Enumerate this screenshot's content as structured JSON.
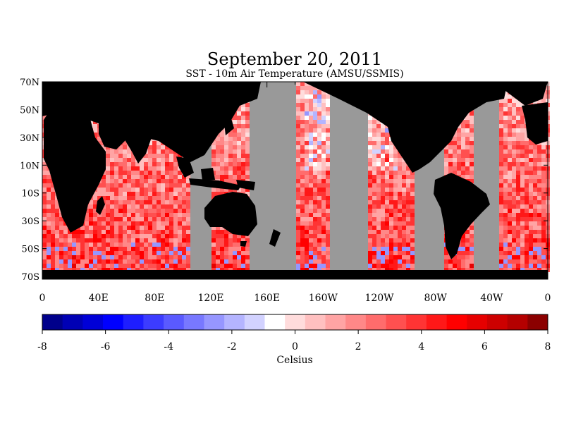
{
  "map": {
    "title": "September 20, 2011",
    "subtitle": "SST - 10m Air Temperature (AMSU/SSMIS)",
    "lat_labels": [
      "70N",
      "50N",
      "30N",
      "10N",
      "10S",
      "30S",
      "50S",
      "70S"
    ],
    "lat_values": [
      70,
      50,
      30,
      10,
      -10,
      -30,
      -50,
      -70
    ],
    "lon_labels": [
      "0",
      "40E",
      "80E",
      "120E",
      "160E",
      "160W",
      "120W",
      "80W",
      "40W",
      "0"
    ],
    "lon_values": [
      0,
      40,
      80,
      120,
      160,
      200,
      240,
      280,
      320,
      360
    ],
    "extent": {
      "lon": [
        0,
        360
      ],
      "lat": [
        -72,
        70
      ]
    },
    "colors": {
      "land": "#000000",
      "no_data": "#999999"
    }
  },
  "colorbar": {
    "label": "Celsius",
    "tick_labels": [
      "-8",
      "-6",
      "-4",
      "-2",
      "0",
      "2",
      "4",
      "6",
      "8"
    ],
    "tick_values": [
      -8,
      -6,
      -4,
      -2,
      0,
      2,
      4,
      6,
      8
    ],
    "range": [
      -8,
      8
    ],
    "colors": [
      "#00008b",
      "#0000b4",
      "#0000d7",
      "#0000ff",
      "#1e1eff",
      "#3c3cff",
      "#5a5aff",
      "#7878ff",
      "#9696ff",
      "#b4b4ff",
      "#d2d2ff",
      "#ffffff",
      "#ffdcdc",
      "#ffc0c0",
      "#ffa4a4",
      "#ff8888",
      "#ff6c6c",
      "#ff5050",
      "#ff3434",
      "#ff1818",
      "#ff0000",
      "#e60000",
      "#cd0000",
      "#b40000",
      "#8b0000"
    ]
  }
}
